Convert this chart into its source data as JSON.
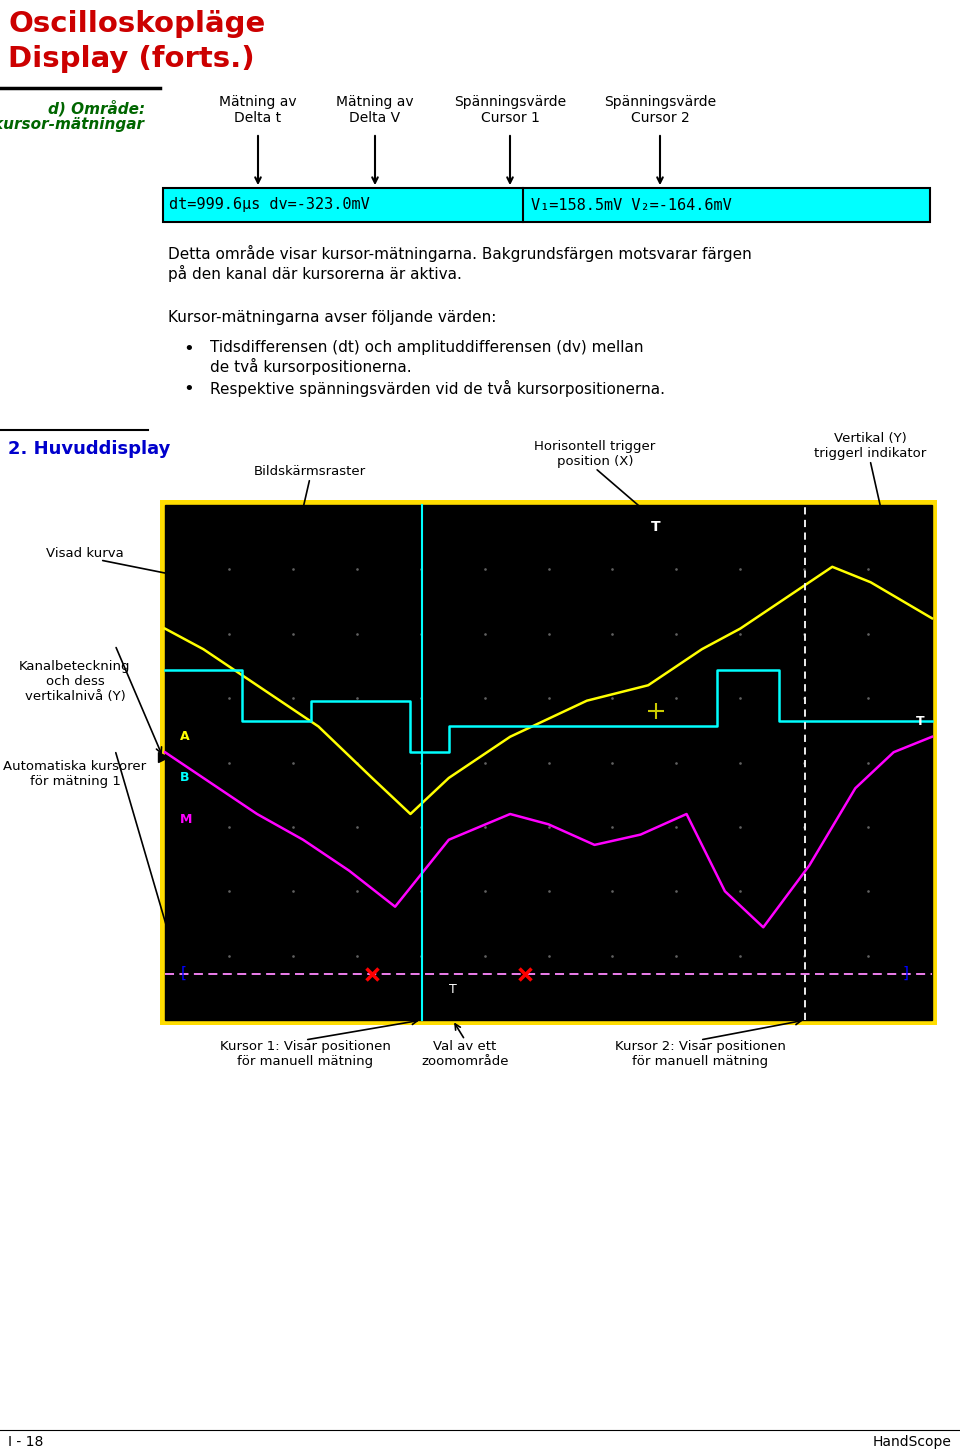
{
  "title_line1": "Oscilloskopläge",
  "title_line2": "Display (forts.)",
  "title_color": "#cc0000",
  "section_label_line1": "d) Område:",
  "section_label_line2": "\"kursor-mätningar",
  "section_label_color": "#006600",
  "arrow_labels": [
    "Mätning av\nDelta t",
    "Mätning av\nDelta V",
    "Spänningsvärde\nCursor 1",
    "Spänningsvärde\nCursor 2"
  ],
  "display_bg": "#00ffff",
  "display_text_left": "dt=999.6μs dv=-323.0mV",
  "display_text_right": "V₁=158.5mV V₂=-164.6mV",
  "body_text1": "Detta område visar kursor-mätningarna. Bakgrundsfärgen motsvarar färgen\npå den kanal där kursorerna är aktiva.",
  "body_text2": "Kursor-mätningarna avser följande värden:",
  "bullet1": "Tidsdifferensen (dt) och amplituddifferensen (dv) mellan\nde två kursorpositionerna.",
  "bullet2": "Respektive spänningsvärden vid de två kursorpositionerna.",
  "section2_label": "2. Huvuddisplay",
  "section2_color": "#0000cc",
  "footer_left": "I - 18",
  "footer_right": "HandScope"
}
